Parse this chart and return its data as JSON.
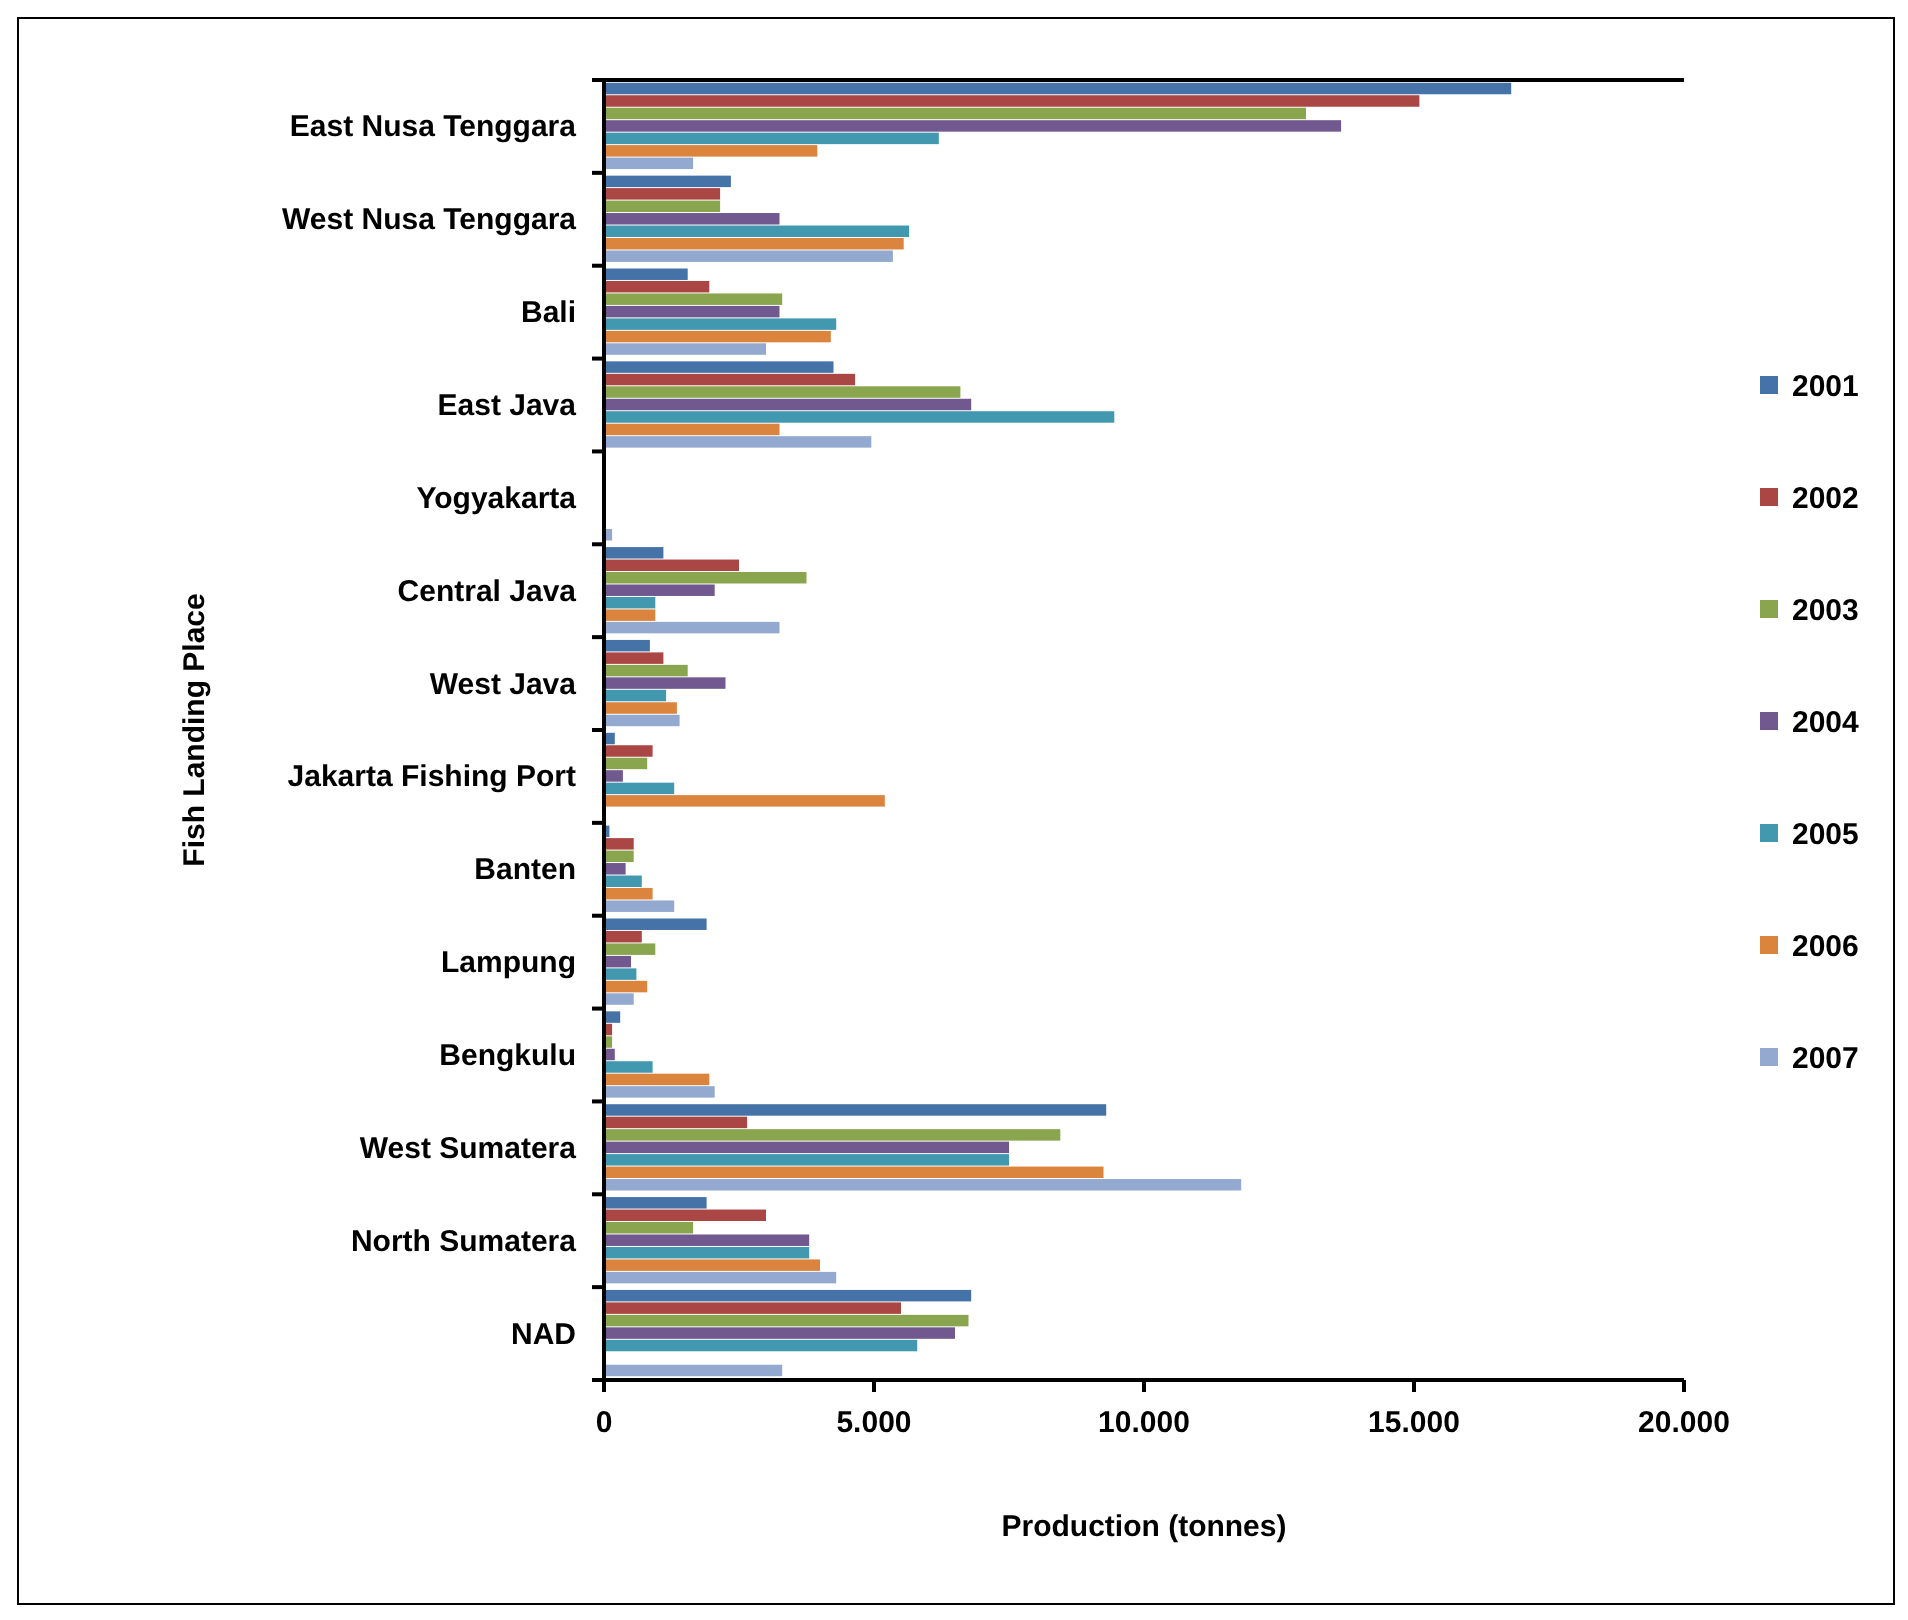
{
  "chart_data": {
    "type": "bar",
    "orientation": "horizontal",
    "xlabel": "Production (tonnes)",
    "ylabel": "Fish Landing Place",
    "categories": [
      "East Nusa Tenggara",
      "West Nusa Tenggara",
      "Bali",
      "East Java",
      "Yogyakarta",
      "Central Java",
      "West Java",
      "Jakarta Fishing Port",
      "Banten",
      "Lampung",
      "Bengkulu",
      "West Sumatera",
      "North Sumatera",
      "NAD"
    ],
    "series": [
      {
        "name": "2001",
        "color": "#4572a7",
        "values": [
          16800,
          2350,
          1550,
          4250,
          0,
          1100,
          850,
          200,
          100,
          1900,
          300,
          9300,
          1900,
          6800
        ]
      },
      {
        "name": "2002",
        "color": "#aa4643",
        "values": [
          15100,
          2150,
          1950,
          4650,
          0,
          2500,
          1100,
          900,
          550,
          700,
          150,
          2650,
          3000,
          5500
        ]
      },
      {
        "name": "2003",
        "color": "#89a54e",
        "values": [
          13000,
          2150,
          3300,
          6600,
          0,
          3750,
          1550,
          800,
          550,
          950,
          150,
          8450,
          1650,
          6750
        ]
      },
      {
        "name": "2004",
        "color": "#71588f",
        "values": [
          13650,
          3250,
          3250,
          6800,
          0,
          2050,
          2250,
          350,
          400,
          500,
          200,
          7500,
          3800,
          6500
        ]
      },
      {
        "name": "2005",
        "color": "#4198af",
        "values": [
          6200,
          5650,
          4300,
          9450,
          0,
          950,
          1150,
          1300,
          700,
          600,
          900,
          7500,
          3800,
          5800
        ]
      },
      {
        "name": "2006",
        "color": "#db843d",
        "values": [
          3950,
          5550,
          4200,
          3250,
          0,
          950,
          1350,
          5200,
          900,
          800,
          1950,
          9250,
          4000,
          0
        ]
      },
      {
        "name": "2007",
        "color": "#93a9cf",
        "values": [
          1650,
          5350,
          3000,
          4950,
          150,
          3250,
          1400,
          0,
          1300,
          550,
          2050,
          11800,
          4300,
          3300
        ]
      }
    ],
    "xlim": [
      0,
      20000
    ],
    "xticks": [
      {
        "value": 0,
        "label": "0"
      },
      {
        "value": 5000,
        "label": "5.000"
      },
      {
        "value": 10000,
        "label": "10.000"
      },
      {
        "value": 15000,
        "label": "15.000"
      },
      {
        "value": 20000,
        "label": "20.000"
      }
    ],
    "grid": false,
    "legend": "right"
  }
}
